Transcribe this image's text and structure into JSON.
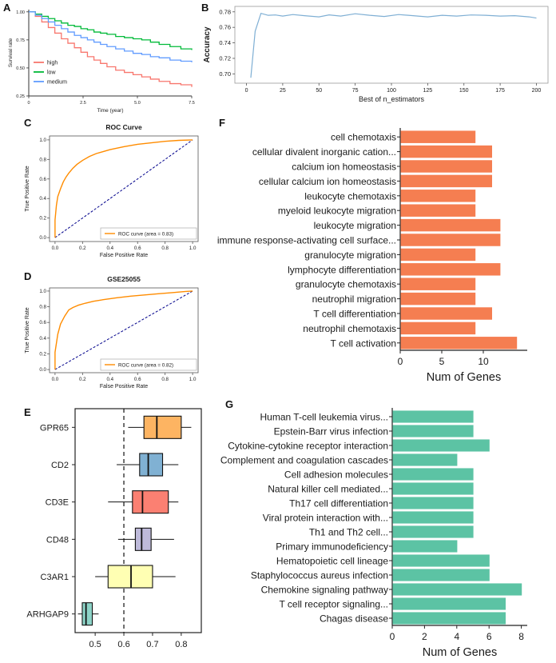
{
  "panels": {
    "A": "A",
    "B": "B",
    "C": "C",
    "D": "D",
    "E": "E",
    "F": "F",
    "G": "G"
  },
  "chart_data": [
    {
      "id": "A",
      "type": "line",
      "subtype": "step-survival",
      "xlabel": "Time (year)",
      "ylabel": "Survival rate",
      "xlim": [
        0,
        7.5
      ],
      "ylim": [
        0.25,
        1.0
      ],
      "xticks": [
        0,
        2.5,
        5.0,
        7.5
      ],
      "xtick_labels": [
        "0",
        "2.5",
        "5.0",
        "7.5"
      ],
      "yticks": [
        0.25,
        0.5,
        0.75,
        1.0
      ],
      "ytick_labels": [
        "0.25",
        "0.50",
        "0.75",
        "1.00"
      ],
      "legend_position": "left-middle",
      "series": [
        {
          "name": "high",
          "color": "#F8766D",
          "x": [
            0,
            0.3,
            0.6,
            0.9,
            1.2,
            1.5,
            1.8,
            2.1,
            2.4,
            2.7,
            3.0,
            3.3,
            3.6,
            4.0,
            4.4,
            4.8,
            5.2,
            5.6,
            6.0,
            6.5,
            7.0,
            7.5
          ],
          "y": [
            1.0,
            0.96,
            0.91,
            0.86,
            0.81,
            0.76,
            0.72,
            0.68,
            0.64,
            0.6,
            0.57,
            0.54,
            0.51,
            0.48,
            0.46,
            0.44,
            0.42,
            0.4,
            0.38,
            0.36,
            0.35,
            0.33
          ]
        },
        {
          "name": "low",
          "color": "#00BA38",
          "x": [
            0,
            0.3,
            0.6,
            0.9,
            1.2,
            1.5,
            1.8,
            2.1,
            2.4,
            2.7,
            3.0,
            3.3,
            3.6,
            4.0,
            4.4,
            4.8,
            5.2,
            5.6,
            6.0,
            6.5,
            7.0,
            7.5
          ],
          "y": [
            1.0,
            0.98,
            0.96,
            0.94,
            0.92,
            0.9,
            0.88,
            0.87,
            0.85,
            0.84,
            0.82,
            0.81,
            0.8,
            0.78,
            0.77,
            0.76,
            0.75,
            0.73,
            0.71,
            0.69,
            0.67,
            0.66
          ]
        },
        {
          "name": "medium",
          "color": "#619CFF",
          "x": [
            0,
            0.3,
            0.6,
            0.9,
            1.2,
            1.5,
            1.8,
            2.1,
            2.4,
            2.7,
            3.0,
            3.3,
            3.6,
            4.0,
            4.4,
            4.8,
            5.2,
            5.6,
            6.0,
            6.5,
            7.0,
            7.5
          ],
          "y": [
            1.0,
            0.97,
            0.94,
            0.91,
            0.88,
            0.85,
            0.82,
            0.79,
            0.77,
            0.75,
            0.73,
            0.71,
            0.69,
            0.67,
            0.65,
            0.63,
            0.62,
            0.6,
            0.59,
            0.57,
            0.56,
            0.55
          ]
        }
      ]
    },
    {
      "id": "B",
      "type": "line",
      "xlabel": "Best of n_estimators",
      "ylabel": "Accuracy",
      "color": "#7FAFD4",
      "xlim": [
        0,
        200
      ],
      "ylim": [
        0.69,
        0.785
      ],
      "xticks": [
        0,
        25,
        50,
        75,
        100,
        125,
        150,
        175,
        200
      ],
      "yticks": [
        0.7,
        0.72,
        0.74,
        0.76,
        0.78
      ],
      "x": [
        3,
        6,
        10,
        15,
        20,
        25,
        32,
        40,
        50,
        57,
        65,
        75,
        85,
        95,
        105,
        115,
        125,
        135,
        145,
        155,
        165,
        175,
        185,
        195,
        200
      ],
      "y": [
        0.695,
        0.755,
        0.778,
        0.7755,
        0.776,
        0.7745,
        0.7765,
        0.775,
        0.7735,
        0.776,
        0.7745,
        0.7775,
        0.7755,
        0.774,
        0.7765,
        0.775,
        0.7735,
        0.7755,
        0.7745,
        0.776,
        0.7755,
        0.7745,
        0.775,
        0.7735,
        0.772
      ]
    },
    {
      "id": "C",
      "type": "line",
      "subtype": "roc",
      "title": "ROC Curve",
      "xlabel": "False Positive Rate",
      "ylabel": "True Positive Rate",
      "legend": "ROC curve (area = 0.83)",
      "area": 0.83,
      "color": "#FF8C00",
      "diagonal_color": "#00008B",
      "ticks": [
        0.0,
        0.2,
        0.4,
        0.6,
        0.8,
        1.0
      ],
      "x": [
        0,
        0,
        0.01,
        0.02,
        0.04,
        0.06,
        0.08,
        0.1,
        0.13,
        0.16,
        0.2,
        0.25,
        0.3,
        0.35,
        0.4,
        0.5,
        0.6,
        0.7,
        0.8,
        0.9,
        1.0
      ],
      "y": [
        0,
        0.18,
        0.33,
        0.42,
        0.5,
        0.57,
        0.62,
        0.66,
        0.71,
        0.75,
        0.79,
        0.83,
        0.86,
        0.88,
        0.9,
        0.93,
        0.955,
        0.97,
        0.985,
        0.995,
        1.0
      ]
    },
    {
      "id": "D",
      "type": "line",
      "subtype": "roc",
      "title": "GSE25055",
      "xlabel": "False Positive Rate",
      "ylabel": "True Positive Rate",
      "legend": "ROC curve (area = 0.82)",
      "area": 0.82,
      "color": "#FF8C00",
      "diagonal_color": "#00008B",
      "ticks": [
        0.0,
        0.2,
        0.4,
        0.6,
        0.8,
        1.0
      ],
      "x": [
        0,
        0,
        0.02,
        0.04,
        0.07,
        0.1,
        0.13,
        0.17,
        0.22,
        0.28,
        0.35,
        0.45,
        0.55,
        0.65,
        0.75,
        0.85,
        0.95,
        1.0
      ],
      "y": [
        0,
        0.22,
        0.45,
        0.58,
        0.68,
        0.76,
        0.79,
        0.82,
        0.845,
        0.87,
        0.89,
        0.915,
        0.935,
        0.95,
        0.965,
        0.98,
        0.995,
        1.0
      ]
    },
    {
      "id": "E",
      "type": "box",
      "orientation": "horizontal",
      "xlim": [
        0.43,
        0.87
      ],
      "xticks": [
        0.5,
        0.6,
        0.7,
        0.8
      ],
      "dashed_line_x": 0.6,
      "genes": [
        {
          "name": "GPR65",
          "color": "#FDB462",
          "whisker_low": 0.615,
          "q1": 0.67,
          "median": 0.715,
          "q3": 0.8,
          "whisker_high": 0.835
        },
        {
          "name": "CD2",
          "color": "#80B1D3",
          "whisker_low": 0.575,
          "q1": 0.655,
          "median": 0.685,
          "q3": 0.735,
          "whisker_high": 0.79
        },
        {
          "name": "CD3E",
          "color": "#FB8072",
          "whisker_low": 0.545,
          "q1": 0.63,
          "median": 0.665,
          "q3": 0.755,
          "whisker_high": 0.79
        },
        {
          "name": "CD48",
          "color": "#BEBADA",
          "whisker_low": 0.58,
          "q1": 0.64,
          "median": 0.662,
          "q3": 0.695,
          "whisker_high": 0.775
        },
        {
          "name": "C3AR1",
          "color": "#FFFFB3",
          "whisker_low": 0.5,
          "q1": 0.545,
          "median": 0.625,
          "q3": 0.7,
          "whisker_high": 0.78
        },
        {
          "name": "ARHGAP9",
          "color": "#8DD3C7",
          "whisker_low": 0.44,
          "q1": 0.455,
          "median": 0.468,
          "q3": 0.49,
          "whisker_high": 0.512
        }
      ]
    },
    {
      "id": "F",
      "type": "bar",
      "orientation": "horizontal",
      "xlabel": "Num of Genes",
      "bar_color": "#F57E51",
      "xlim": [
        0,
        15
      ],
      "xticks": [
        0,
        5,
        10
      ],
      "categories": [
        "cell chemotaxis",
        "cellular divalent inorganic cation...",
        "calcium ion homeostasis",
        "cellular calcium ion homeostasis",
        "leukocyte chemotaxis",
        "myeloid leukocyte migration",
        "leukocyte migration",
        "immune response-activating cell surface...",
        "granulocyte migration",
        "lymphocyte differentiation",
        "granulocyte chemotaxis",
        "neutrophil migration",
        "T cell differentiation",
        "neutrophil chemotaxis",
        "T cell activation"
      ],
      "values": [
        9,
        11,
        11,
        11,
        9,
        9,
        12,
        12,
        9,
        12,
        9,
        9,
        11,
        9,
        14
      ]
    },
    {
      "id": "G",
      "type": "bar",
      "orientation": "horizontal",
      "xlabel": "Num of Genes",
      "bar_color": "#5CC3A4",
      "xlim": [
        0,
        8.6
      ],
      "xticks": [
        0,
        2,
        4,
        6,
        8
      ],
      "categories": [
        "Human T-cell leukemia virus...",
        "Epstein-Barr virus infection",
        "Cytokine-cytokine receptor interaction",
        "Complement and coagulation cascades",
        "Cell adhesion molecules",
        "Natural killer cell mediated...",
        "Th17 cell differentiation",
        "Viral protein interaction with...",
        "Th1 and Th2 cell...",
        "Primary immunodeficiency",
        "Hematopoietic cell lineage",
        "Staphylococcus aureus infection",
        "Chemokine signaling pathway",
        "T cell receptor signaling...",
        "Chagas disease"
      ],
      "values": [
        5,
        5,
        6,
        4,
        5,
        5,
        5,
        5,
        5,
        4,
        6,
        6,
        8,
        7,
        7
      ]
    }
  ]
}
